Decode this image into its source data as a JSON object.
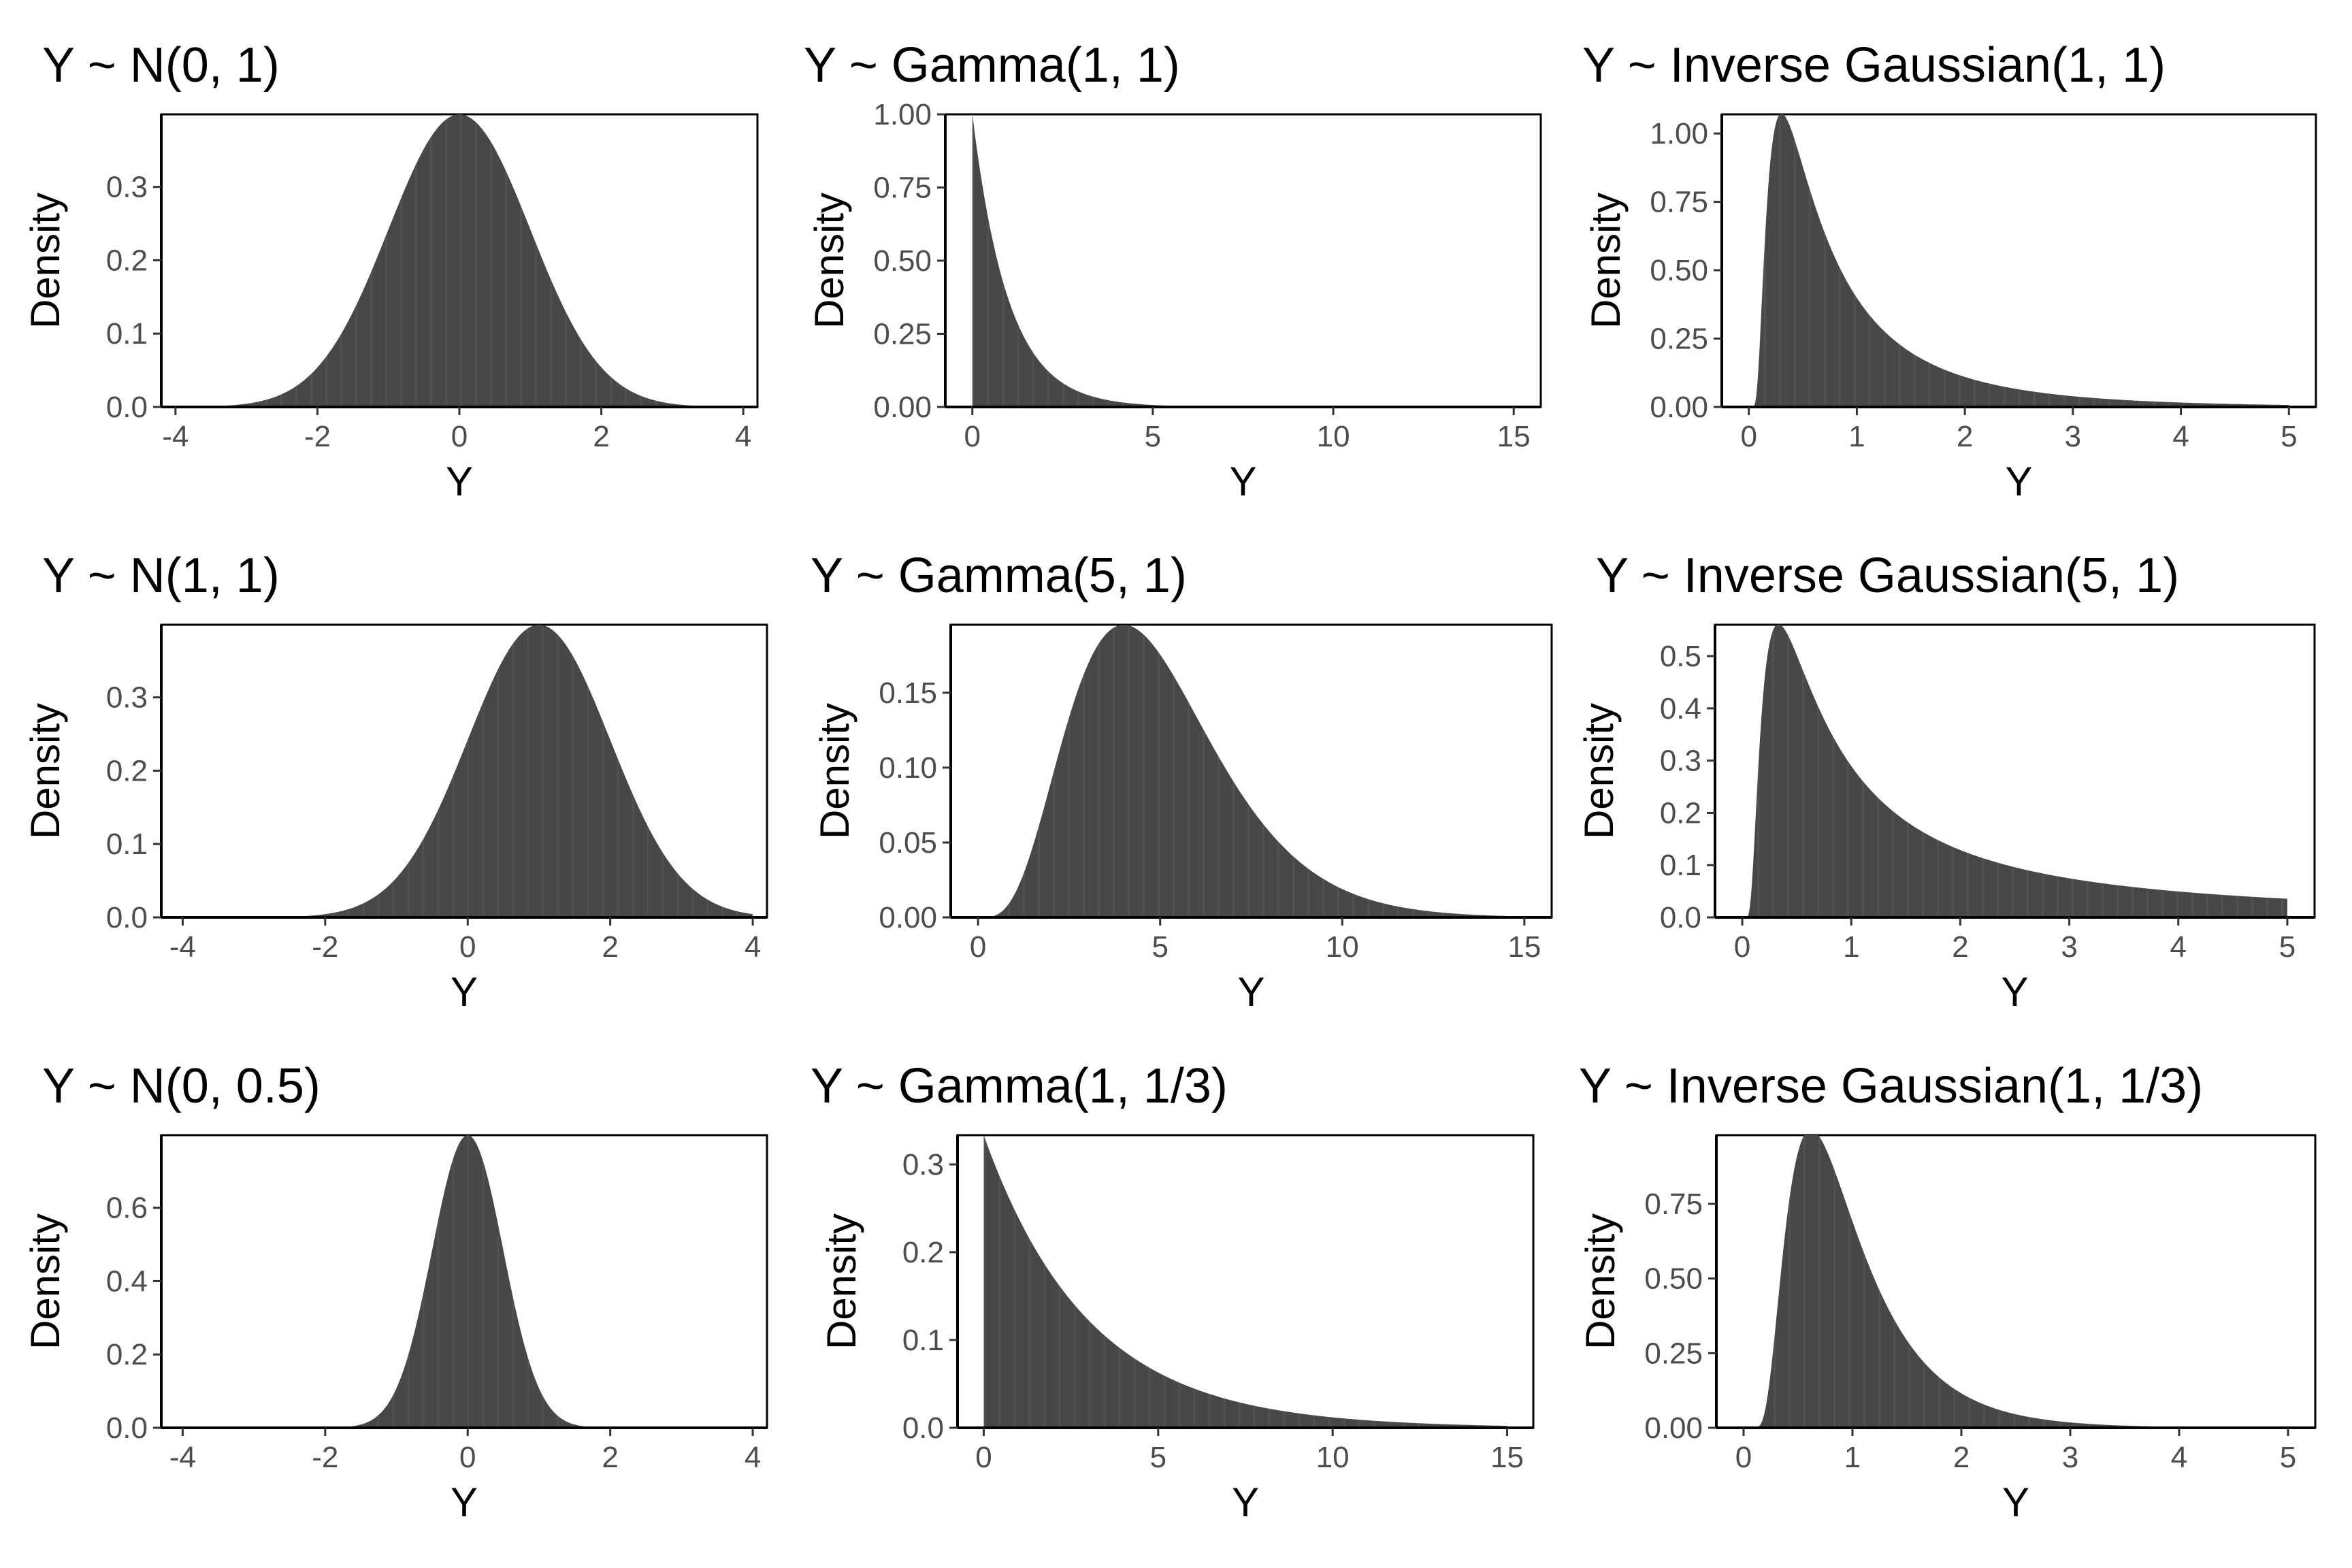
{
  "colors": {
    "fill": "#474747",
    "stripe": "#5e5e5e",
    "axis": "#000000",
    "tick_text": "#4d4d4d"
  },
  "chart_data": [
    {
      "type": "area",
      "title": "Y ~ N(0, 1)",
      "xlabel": "Y",
      "ylabel": "Density",
      "dist": "normal",
      "params": {
        "mean": 0,
        "sd": 1
      },
      "xlim": [
        -4.2,
        4.2
      ],
      "ylim": [
        0,
        0.399
      ],
      "xticks": [
        -4,
        -2,
        0,
        2,
        4
      ],
      "xtick_labels": [
        "-4",
        "-2",
        "0",
        "2",
        "4"
      ],
      "yticks": [
        0,
        0.1,
        0.2,
        0.3
      ],
      "ytick_labels": [
        "0.0",
        "0.1",
        "0.2",
        "0.3"
      ],
      "x": [
        -4,
        -3,
        -2,
        -1.5,
        -1,
        -0.5,
        0,
        0.5,
        1,
        1.5,
        2,
        3,
        4
      ],
      "y": [
        0.0001,
        0.0044,
        0.054,
        0.1295,
        0.242,
        0.3521,
        0.3989,
        0.3521,
        0.242,
        0.1295,
        0.054,
        0.0044,
        0.0001
      ]
    },
    {
      "type": "area",
      "title": "Y ~ Gamma(1, 1)",
      "xlabel": "Y",
      "ylabel": "Density",
      "dist": "gamma",
      "params": {
        "shape": 1,
        "rate": 1
      },
      "xlim": [
        -0.75,
        15.75
      ],
      "ylim": [
        0,
        1.0
      ],
      "xticks": [
        0,
        5,
        10,
        15
      ],
      "xtick_labels": [
        "0",
        "5",
        "10",
        "15"
      ],
      "yticks": [
        0,
        0.25,
        0.5,
        0.75,
        1.0
      ],
      "ytick_labels": [
        "0.00",
        "0.25",
        "0.50",
        "0.75",
        "1.00"
      ],
      "x": [
        0,
        0.5,
        1,
        2,
        3,
        5,
        10,
        15
      ],
      "y": [
        1.0,
        0.607,
        0.368,
        0.135,
        0.05,
        0.007,
        0.0,
        0.0
      ]
    },
    {
      "type": "area",
      "title": "Y ~ Inverse Gaussian(1, 1)",
      "xlabel": "Y",
      "ylabel": "Density",
      "dist": "invgauss",
      "params": {
        "mean": 1,
        "shape": 1
      },
      "xlim": [
        -0.25,
        5.25
      ],
      "ylim": [
        0,
        1.07
      ],
      "xticks": [
        0,
        1,
        2,
        3,
        4,
        5
      ],
      "xtick_labels": [
        "0",
        "1",
        "2",
        "3",
        "4",
        "5"
      ],
      "yticks": [
        0,
        0.25,
        0.5,
        0.75,
        1.0
      ],
      "ytick_labels": [
        "0.00",
        "0.25",
        "0.50",
        "0.75",
        "1.00"
      ],
      "x": [
        0.1,
        0.2,
        0.33,
        0.5,
        1,
        2,
        3,
        4,
        5
      ],
      "y": [
        0.22,
        0.89,
        1.06,
        0.88,
        0.4,
        0.11,
        0.04,
        0.016,
        0.007
      ]
    },
    {
      "type": "area",
      "title": "Y ~ N(1, 1)",
      "xlabel": "Y",
      "ylabel": "Density",
      "dist": "normal",
      "params": {
        "mean": 1,
        "sd": 1
      },
      "xlim": [
        -4.3,
        4.2
      ],
      "ylim": [
        0,
        0.399
      ],
      "xticks": [
        -4,
        -2,
        0,
        2,
        4
      ],
      "xtick_labels": [
        "-4",
        "-2",
        "0",
        "2",
        "4"
      ],
      "yticks": [
        0,
        0.1,
        0.2,
        0.3
      ],
      "ytick_labels": [
        "0.0",
        "0.1",
        "0.2",
        "0.3"
      ],
      "x": [
        -4,
        -3,
        -2,
        -1,
        0,
        0.5,
        1,
        1.5,
        2,
        3,
        4
      ],
      "y": [
        0.0,
        0.0001,
        0.0044,
        0.054,
        0.242,
        0.3521,
        0.3989,
        0.3521,
        0.242,
        0.054,
        0.0044
      ]
    },
    {
      "type": "area",
      "title": "Y ~ Gamma(5, 1)",
      "xlabel": "Y",
      "ylabel": "Density",
      "dist": "gamma",
      "params": {
        "shape": 5,
        "rate": 1
      },
      "xlim": [
        -0.75,
        15.75
      ],
      "ylim": [
        0,
        0.1954
      ],
      "xticks": [
        0,
        5,
        10,
        15
      ],
      "xtick_labels": [
        "0",
        "5",
        "10",
        "15"
      ],
      "yticks": [
        0,
        0.05,
        0.1,
        0.15
      ],
      "ytick_labels": [
        "0.00",
        "0.05",
        "0.10",
        "0.15"
      ],
      "x": [
        0,
        1,
        2,
        3,
        4,
        5,
        6,
        8,
        10,
        12,
        15
      ],
      "y": [
        0.0,
        0.0153,
        0.0902,
        0.168,
        0.1954,
        0.1755,
        0.1339,
        0.0573,
        0.0189,
        0.0053,
        0.0005
      ]
    },
    {
      "type": "area",
      "title": "Y ~ Inverse Gaussian(5, 1)",
      "xlabel": "Y",
      "ylabel": "Density",
      "dist": "invgauss",
      "params": {
        "mean": 5,
        "shape": 1
      },
      "xlim": [
        -0.25,
        5.25
      ],
      "ylim": [
        0,
        0.56
      ],
      "xticks": [
        0,
        1,
        2,
        3,
        4,
        5
      ],
      "xtick_labels": [
        "0",
        "1",
        "2",
        "3",
        "4",
        "5"
      ],
      "yticks": [
        0,
        0.1,
        0.2,
        0.3,
        0.4,
        0.5
      ],
      "ytick_labels": [
        "0.0",
        "0.1",
        "0.2",
        "0.3",
        "0.4",
        "0.5"
      ],
      "x": [
        0.1,
        0.2,
        0.33,
        0.5,
        1,
        2,
        3,
        4,
        5
      ],
      "y": [
        0.16,
        0.51,
        0.55,
        0.47,
        0.27,
        0.12,
        0.07,
        0.047,
        0.034
      ]
    },
    {
      "type": "area",
      "title": "Y ~ N(0, 0.5)",
      "xlabel": "Y",
      "ylabel": "Density",
      "dist": "normal",
      "params": {
        "mean": 0,
        "sd": 0.5
      },
      "xlim": [
        -4.3,
        4.2
      ],
      "ylim": [
        0,
        0.798
      ],
      "xticks": [
        -4,
        -2,
        0,
        2,
        4
      ],
      "xtick_labels": [
        "-4",
        "-2",
        "0",
        "2",
        "4"
      ],
      "yticks": [
        0,
        0.2,
        0.4,
        0.6
      ],
      "ytick_labels": [
        "0.0",
        "0.2",
        "0.4",
        "0.6"
      ],
      "x": [
        -2,
        -1.5,
        -1,
        -0.5,
        0,
        0.5,
        1,
        1.5,
        2
      ],
      "y": [
        0.0003,
        0.0089,
        0.108,
        0.484,
        0.798,
        0.484,
        0.108,
        0.0089,
        0.0003
      ]
    },
    {
      "type": "area",
      "title": "Y ~ Gamma(1, 1/3)",
      "xlabel": "Y",
      "ylabel": "Density",
      "dist": "gamma",
      "params": {
        "shape": 1,
        "rate": 0.3333
      },
      "xlim": [
        -0.75,
        15.75
      ],
      "ylim": [
        0,
        0.3333
      ],
      "xticks": [
        0,
        5,
        10,
        15
      ],
      "xtick_labels": [
        "0",
        "5",
        "10",
        "15"
      ],
      "yticks": [
        0,
        0.1,
        0.2,
        0.3
      ],
      "ytick_labels": [
        "0.0",
        "0.1",
        "0.2",
        "0.3"
      ],
      "x": [
        0,
        1,
        2,
        3,
        5,
        8,
        10,
        15
      ],
      "y": [
        0.333,
        0.239,
        0.171,
        0.123,
        0.063,
        0.023,
        0.012,
        0.002
      ]
    },
    {
      "type": "area",
      "title": "Y ~ Inverse Gaussian(1, 1/3)",
      "xlabel": "Y",
      "ylabel": "Density",
      "dist": "invgauss",
      "params": {
        "mean": 1,
        "shape": 3
      },
      "xlim": [
        -0.25,
        5.25
      ],
      "ylim": [
        0,
        0.98
      ],
      "xticks": [
        0,
        1,
        2,
        3,
        4,
        5
      ],
      "xtick_labels": [
        "0",
        "1",
        "2",
        "3",
        "4",
        "5"
      ],
      "yticks": [
        0,
        0.25,
        0.5,
        0.75
      ],
      "ytick_labels": [
        "0.00",
        "0.25",
        "0.50",
        "0.75"
      ],
      "x": [
        0.2,
        0.4,
        0.6,
        1,
        1.5,
        2,
        3,
        4
      ],
      "y": [
        0.04,
        0.76,
        0.97,
        0.69,
        0.28,
        0.11,
        0.02,
        0.004
      ]
    }
  ]
}
